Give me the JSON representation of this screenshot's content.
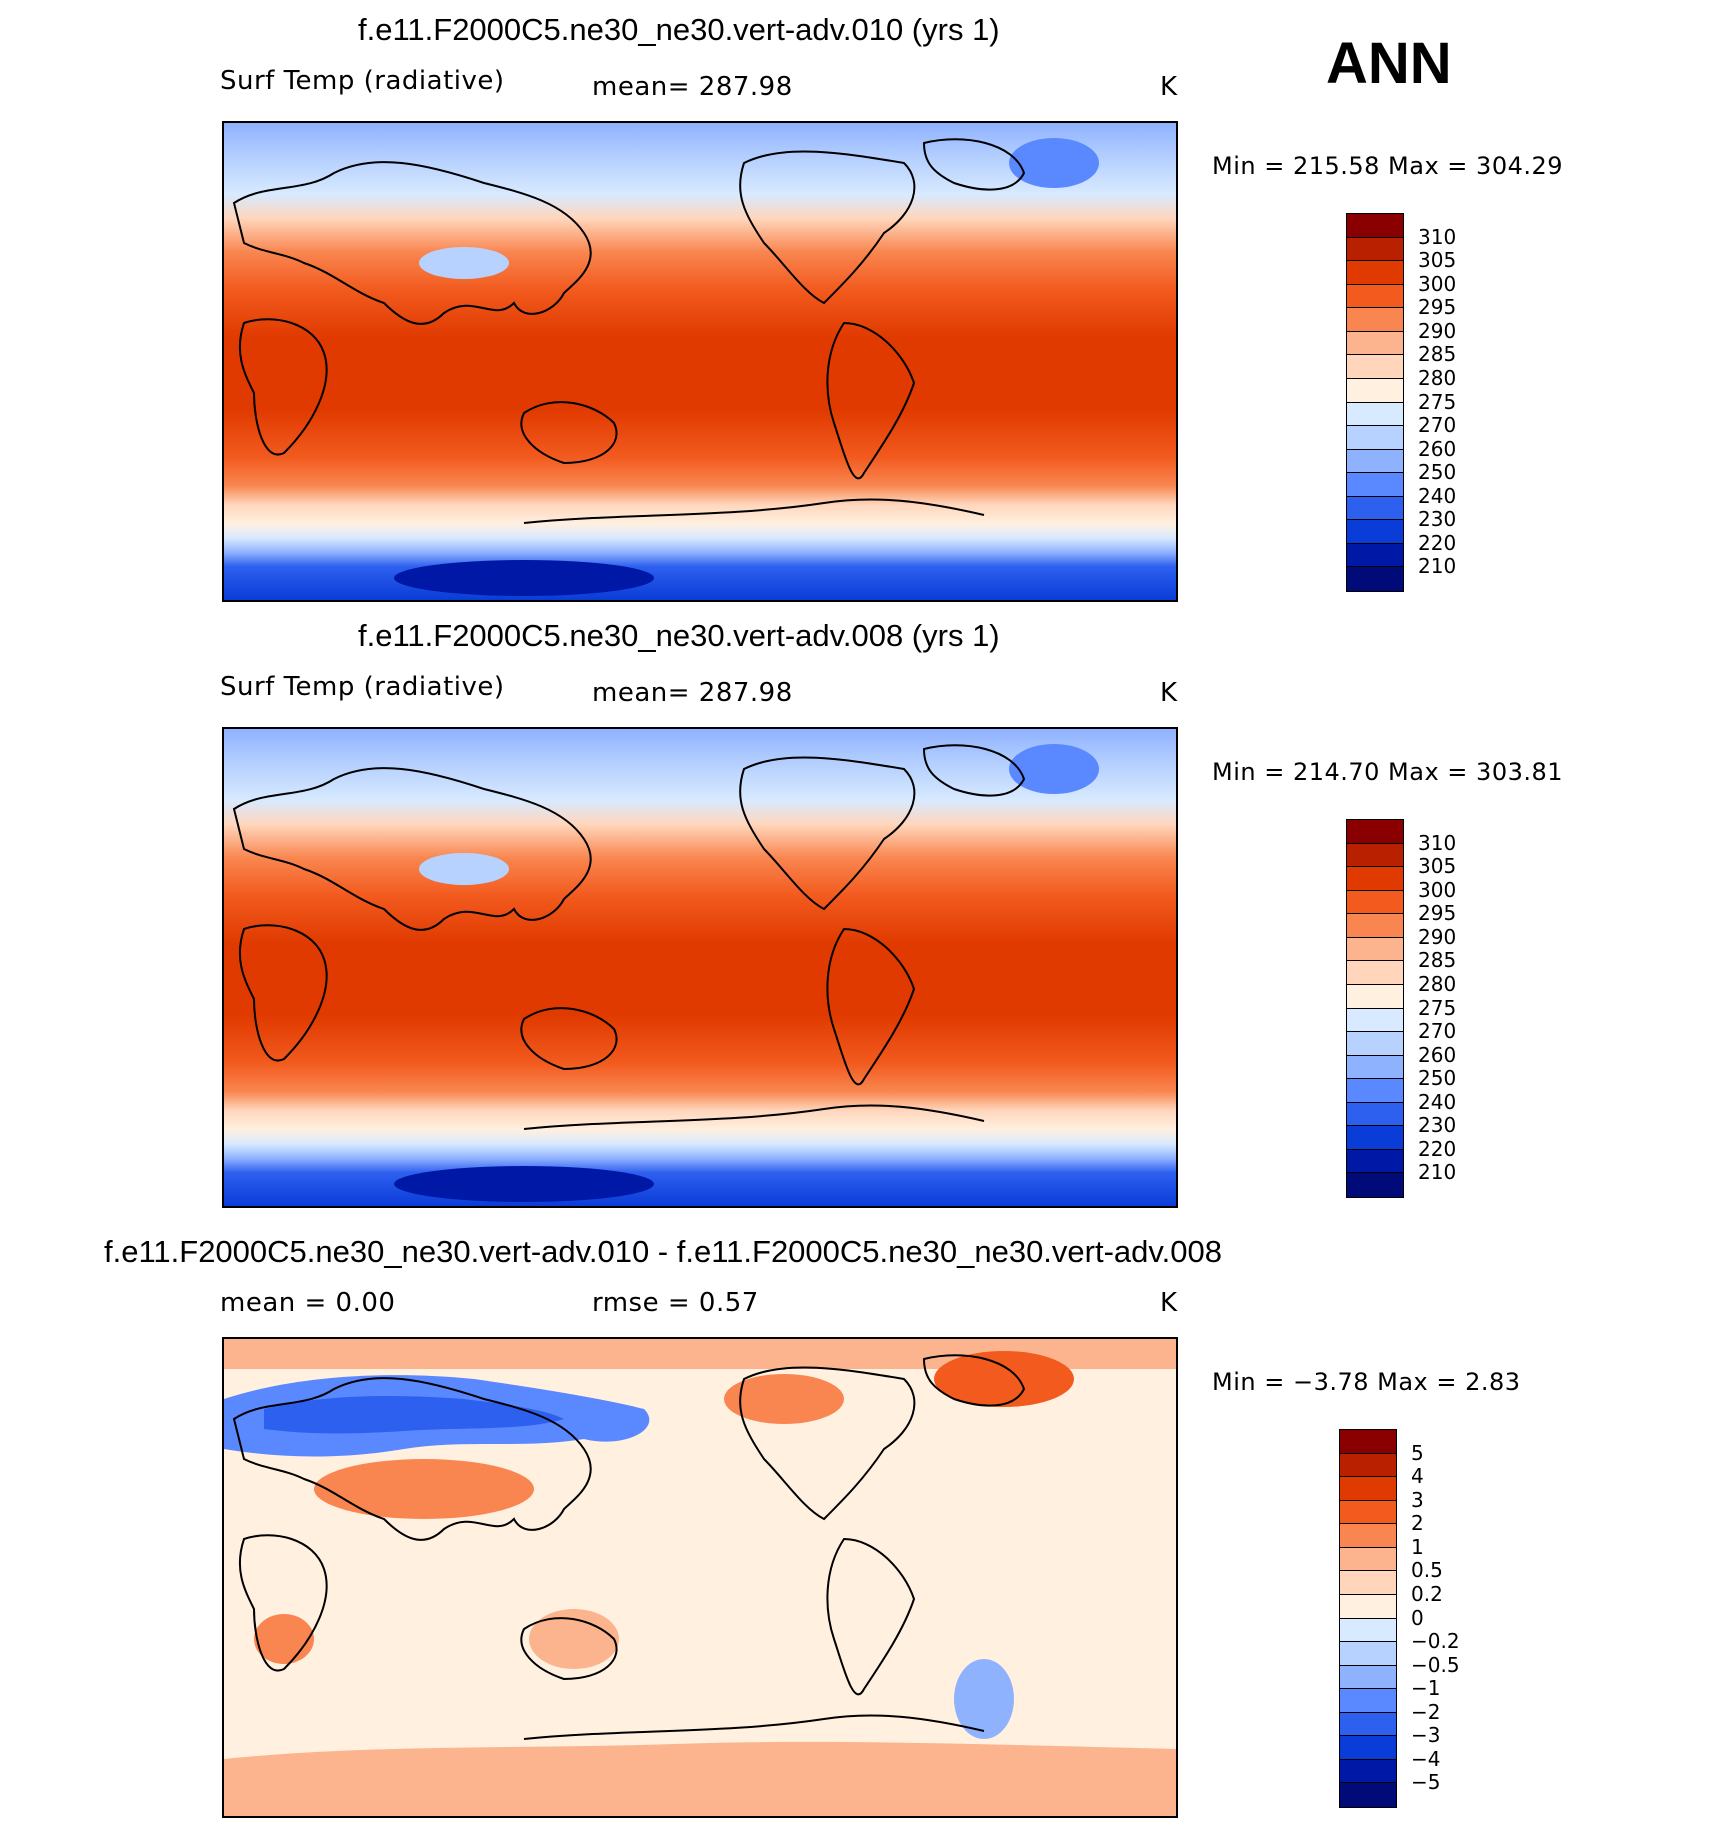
{
  "header": {
    "season": "ANN"
  },
  "panels": [
    {
      "title": "f.e11.F2000C5.ne30_ne30.vert-adv.010 (yrs 1)",
      "variable": "Surf Temp (radiative)",
      "stat": "mean=  287.98",
      "units": "K",
      "minmax": "Min  =  215.58  Max  =  304.29",
      "colorbar": {
        "labels": [
          "310",
          "305",
          "300",
          "295",
          "290",
          "285",
          "280",
          "275",
          "270",
          "260",
          "250",
          "240",
          "230",
          "220",
          "210"
        ],
        "colors": [
          "#8a0000",
          "#b82000",
          "#e03a00",
          "#f25a1e",
          "#f98650",
          "#fcb48e",
          "#ffd6bc",
          "#fff0e0",
          "#d8eaff",
          "#b8d2ff",
          "#8fb2ff",
          "#5a88ff",
          "#2e60f0",
          "#0a3cd8",
          "#0018a6",
          "#000a78"
        ]
      }
    },
    {
      "title": "f.e11.F2000C5.ne30_ne30.vert-adv.008 (yrs 1)",
      "variable": "Surf Temp (radiative)",
      "stat": "mean=  287.98",
      "units": "K",
      "minmax": "Min  =  214.70  Max  =  303.81",
      "colorbar": {
        "labels": [
          "310",
          "305",
          "300",
          "295",
          "290",
          "285",
          "280",
          "275",
          "270",
          "260",
          "250",
          "240",
          "230",
          "220",
          "210"
        ],
        "colors": [
          "#8a0000",
          "#b82000",
          "#e03a00",
          "#f25a1e",
          "#f98650",
          "#fcb48e",
          "#ffd6bc",
          "#fff0e0",
          "#d8eaff",
          "#b8d2ff",
          "#8fb2ff",
          "#5a88ff",
          "#2e60f0",
          "#0a3cd8",
          "#0018a6",
          "#000a78"
        ]
      }
    },
    {
      "title": "f.e11.F2000C5.ne30_ne30.vert-adv.010 - f.e11.F2000C5.ne30_ne30.vert-adv.008",
      "stat_mean": "mean =     0.00",
      "stat_rmse": "rmse =     0.57",
      "units": "K",
      "minmax": "Min  =    −3.78  Max  =     2.83",
      "colorbar": {
        "labels": [
          "5",
          "4",
          "3",
          "2",
          "1",
          "0.5",
          "0.2",
          "0",
          "−0.2",
          "−0.5",
          "−1",
          "−2",
          "−3",
          "−4",
          "−5"
        ],
        "colors": [
          "#8a0000",
          "#b82000",
          "#e03a00",
          "#f25a1e",
          "#f98650",
          "#fcb48e",
          "#ffd6bc",
          "#fff0e0",
          "#d8eaff",
          "#b8d2ff",
          "#8fb2ff",
          "#5a88ff",
          "#2e60f0",
          "#0a3cd8",
          "#0018a6",
          "#000a78"
        ]
      }
    }
  ],
  "chart_data": [
    {
      "type": "heatmap",
      "title": "f.e11.F2000C5.ne30_ne30.vert-adv.010 (yrs 1)",
      "variable": "Surf Temp (radiative)",
      "units": "K",
      "mean": 287.98,
      "min": 215.58,
      "max": 304.29,
      "contour_levels": [
        210,
        220,
        230,
        240,
        250,
        260,
        270,
        275,
        280,
        285,
        290,
        295,
        300,
        305,
        310
      ]
    },
    {
      "type": "heatmap",
      "title": "f.e11.F2000C5.ne30_ne30.vert-adv.008 (yrs 1)",
      "variable": "Surf Temp (radiative)",
      "units": "K",
      "mean": 287.98,
      "min": 214.7,
      "max": 303.81,
      "contour_levels": [
        210,
        220,
        230,
        240,
        250,
        260,
        270,
        275,
        280,
        285,
        290,
        295,
        300,
        305,
        310
      ]
    },
    {
      "type": "heatmap",
      "title": "f.e11.F2000C5.ne30_ne30.vert-adv.010 - f.e11.F2000C5.ne30_ne30.vert-adv.008",
      "units": "K",
      "mean": 0.0,
      "rmse": 0.57,
      "min": -3.78,
      "max": 2.83,
      "contour_levels": [
        -5,
        -4,
        -3,
        -2,
        -1,
        -0.5,
        -0.2,
        0,
        0.2,
        0.5,
        1,
        2,
        3,
        4,
        5
      ]
    }
  ]
}
